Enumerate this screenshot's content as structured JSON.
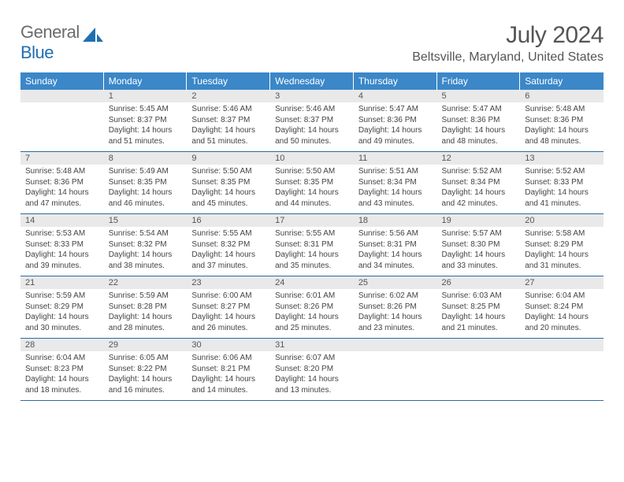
{
  "brand": {
    "part1": "General",
    "part2": "Blue"
  },
  "title": "July 2024",
  "location": "Beltsville, Maryland, United States",
  "colors": {
    "header_bg": "#3b87c8",
    "header_text": "#ffffff",
    "daynum_bg": "#e9e9e9",
    "rule": "#2d6aa3",
    "brand_gray": "#6b6b6b",
    "brand_blue": "#1f6fb2"
  },
  "weekdays": [
    "Sunday",
    "Monday",
    "Tuesday",
    "Wednesday",
    "Thursday",
    "Friday",
    "Saturday"
  ],
  "weeks": [
    [
      {
        "n": "",
        "lines": []
      },
      {
        "n": "1",
        "lines": [
          "Sunrise: 5:45 AM",
          "Sunset: 8:37 PM",
          "Daylight: 14 hours",
          "and 51 minutes."
        ]
      },
      {
        "n": "2",
        "lines": [
          "Sunrise: 5:46 AM",
          "Sunset: 8:37 PM",
          "Daylight: 14 hours",
          "and 51 minutes."
        ]
      },
      {
        "n": "3",
        "lines": [
          "Sunrise: 5:46 AM",
          "Sunset: 8:37 PM",
          "Daylight: 14 hours",
          "and 50 minutes."
        ]
      },
      {
        "n": "4",
        "lines": [
          "Sunrise: 5:47 AM",
          "Sunset: 8:36 PM",
          "Daylight: 14 hours",
          "and 49 minutes."
        ]
      },
      {
        "n": "5",
        "lines": [
          "Sunrise: 5:47 AM",
          "Sunset: 8:36 PM",
          "Daylight: 14 hours",
          "and 48 minutes."
        ]
      },
      {
        "n": "6",
        "lines": [
          "Sunrise: 5:48 AM",
          "Sunset: 8:36 PM",
          "Daylight: 14 hours",
          "and 48 minutes."
        ]
      }
    ],
    [
      {
        "n": "7",
        "lines": [
          "Sunrise: 5:48 AM",
          "Sunset: 8:36 PM",
          "Daylight: 14 hours",
          "and 47 minutes."
        ]
      },
      {
        "n": "8",
        "lines": [
          "Sunrise: 5:49 AM",
          "Sunset: 8:35 PM",
          "Daylight: 14 hours",
          "and 46 minutes."
        ]
      },
      {
        "n": "9",
        "lines": [
          "Sunrise: 5:50 AM",
          "Sunset: 8:35 PM",
          "Daylight: 14 hours",
          "and 45 minutes."
        ]
      },
      {
        "n": "10",
        "lines": [
          "Sunrise: 5:50 AM",
          "Sunset: 8:35 PM",
          "Daylight: 14 hours",
          "and 44 minutes."
        ]
      },
      {
        "n": "11",
        "lines": [
          "Sunrise: 5:51 AM",
          "Sunset: 8:34 PM",
          "Daylight: 14 hours",
          "and 43 minutes."
        ]
      },
      {
        "n": "12",
        "lines": [
          "Sunrise: 5:52 AM",
          "Sunset: 8:34 PM",
          "Daylight: 14 hours",
          "and 42 minutes."
        ]
      },
      {
        "n": "13",
        "lines": [
          "Sunrise: 5:52 AM",
          "Sunset: 8:33 PM",
          "Daylight: 14 hours",
          "and 41 minutes."
        ]
      }
    ],
    [
      {
        "n": "14",
        "lines": [
          "Sunrise: 5:53 AM",
          "Sunset: 8:33 PM",
          "Daylight: 14 hours",
          "and 39 minutes."
        ]
      },
      {
        "n": "15",
        "lines": [
          "Sunrise: 5:54 AM",
          "Sunset: 8:32 PM",
          "Daylight: 14 hours",
          "and 38 minutes."
        ]
      },
      {
        "n": "16",
        "lines": [
          "Sunrise: 5:55 AM",
          "Sunset: 8:32 PM",
          "Daylight: 14 hours",
          "and 37 minutes."
        ]
      },
      {
        "n": "17",
        "lines": [
          "Sunrise: 5:55 AM",
          "Sunset: 8:31 PM",
          "Daylight: 14 hours",
          "and 35 minutes."
        ]
      },
      {
        "n": "18",
        "lines": [
          "Sunrise: 5:56 AM",
          "Sunset: 8:31 PM",
          "Daylight: 14 hours",
          "and 34 minutes."
        ]
      },
      {
        "n": "19",
        "lines": [
          "Sunrise: 5:57 AM",
          "Sunset: 8:30 PM",
          "Daylight: 14 hours",
          "and 33 minutes."
        ]
      },
      {
        "n": "20",
        "lines": [
          "Sunrise: 5:58 AM",
          "Sunset: 8:29 PM",
          "Daylight: 14 hours",
          "and 31 minutes."
        ]
      }
    ],
    [
      {
        "n": "21",
        "lines": [
          "Sunrise: 5:59 AM",
          "Sunset: 8:29 PM",
          "Daylight: 14 hours",
          "and 30 minutes."
        ]
      },
      {
        "n": "22",
        "lines": [
          "Sunrise: 5:59 AM",
          "Sunset: 8:28 PM",
          "Daylight: 14 hours",
          "and 28 minutes."
        ]
      },
      {
        "n": "23",
        "lines": [
          "Sunrise: 6:00 AM",
          "Sunset: 8:27 PM",
          "Daylight: 14 hours",
          "and 26 minutes."
        ]
      },
      {
        "n": "24",
        "lines": [
          "Sunrise: 6:01 AM",
          "Sunset: 8:26 PM",
          "Daylight: 14 hours",
          "and 25 minutes."
        ]
      },
      {
        "n": "25",
        "lines": [
          "Sunrise: 6:02 AM",
          "Sunset: 8:26 PM",
          "Daylight: 14 hours",
          "and 23 minutes."
        ]
      },
      {
        "n": "26",
        "lines": [
          "Sunrise: 6:03 AM",
          "Sunset: 8:25 PM",
          "Daylight: 14 hours",
          "and 21 minutes."
        ]
      },
      {
        "n": "27",
        "lines": [
          "Sunrise: 6:04 AM",
          "Sunset: 8:24 PM",
          "Daylight: 14 hours",
          "and 20 minutes."
        ]
      }
    ],
    [
      {
        "n": "28",
        "lines": [
          "Sunrise: 6:04 AM",
          "Sunset: 8:23 PM",
          "Daylight: 14 hours",
          "and 18 minutes."
        ]
      },
      {
        "n": "29",
        "lines": [
          "Sunrise: 6:05 AM",
          "Sunset: 8:22 PM",
          "Daylight: 14 hours",
          "and 16 minutes."
        ]
      },
      {
        "n": "30",
        "lines": [
          "Sunrise: 6:06 AM",
          "Sunset: 8:21 PM",
          "Daylight: 14 hours",
          "and 14 minutes."
        ]
      },
      {
        "n": "31",
        "lines": [
          "Sunrise: 6:07 AM",
          "Sunset: 8:20 PM",
          "Daylight: 14 hours",
          "and 13 minutes."
        ]
      },
      {
        "n": "",
        "lines": []
      },
      {
        "n": "",
        "lines": []
      },
      {
        "n": "",
        "lines": []
      }
    ]
  ]
}
